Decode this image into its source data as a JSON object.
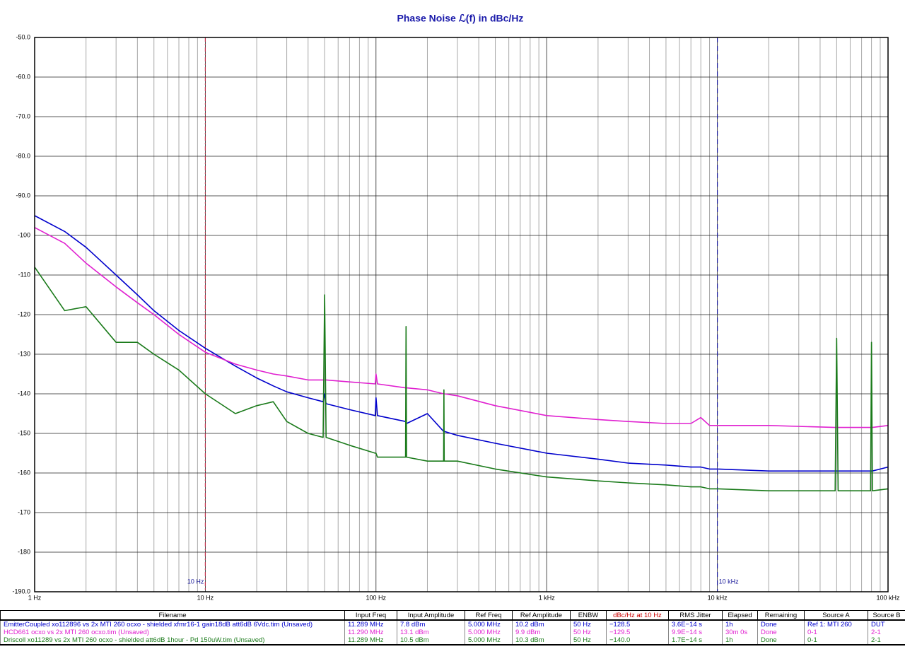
{
  "chart_data": {
    "type": "line",
    "title": "Phase Noise ℒ(f) in dBc/Hz",
    "log_x": true,
    "grid": true,
    "minor_grid": true,
    "xlim": [
      1,
      100000
    ],
    "ylim": [
      -190,
      -50
    ],
    "xticks": [
      {
        "value": 1,
        "label": "1 Hz"
      },
      {
        "value": 10,
        "label": "10 Hz"
      },
      {
        "value": 100,
        "label": "100 Hz"
      },
      {
        "value": 1000,
        "label": "1 kHz"
      },
      {
        "value": 10000,
        "label": "10 kHz"
      },
      {
        "value": 100000,
        "label": "100 kHz"
      }
    ],
    "yticks": [
      {
        "value": -50,
        "label": "-50.0"
      },
      {
        "value": -60,
        "label": "-60.0"
      },
      {
        "value": -70,
        "label": "-70.0"
      },
      {
        "value": -80,
        "label": "-80.0"
      },
      {
        "value": -90,
        "label": "-90.0"
      },
      -100,
      -110,
      -120,
      -130,
      -140,
      -150,
      -160,
      -170,
      -180,
      {
        "value": -190,
        "label": "-190.0"
      }
    ],
    "markers": [
      {
        "x": 10,
        "label": "10 Hz",
        "color": "#c0304a"
      },
      {
        "x": 10000,
        "label": "10 kHz",
        "color": "#1a1a9a"
      }
    ],
    "x": [
      1,
      1.5,
      2,
      3,
      4,
      5,
      7,
      10,
      15,
      20,
      25,
      30,
      40,
      49,
      50,
      51,
      70,
      99,
      100,
      102,
      149,
      150,
      151,
      200,
      249,
      250,
      251,
      300,
      500,
      1000,
      2000,
      3000,
      5000,
      7000,
      8000,
      9000,
      10000,
      20000,
      49000,
      50000,
      51000,
      79000,
      80000,
      81000,
      100000
    ],
    "series": [
      {
        "name": "EmitterCoupled xo112896 vs 2x MTI 260 ocxo - shielded xfmr16-1 gain18dB att6dB 6Vdc.tim (Unsaved)",
        "color": "#0000cc",
        "values": [
          -95,
          -99,
          -103,
          -110,
          -115,
          -119,
          -124,
          -128.5,
          -133,
          -136,
          -138,
          -139.5,
          -141,
          -142,
          -140,
          -142.5,
          -144,
          -145.5,
          -141,
          -145.5,
          -147,
          -147,
          -147.5,
          -145,
          -149.5,
          -149.5,
          -149.5,
          -150.5,
          -152.5,
          -155,
          -156.5,
          -157.5,
          -158,
          -158.5,
          -158.5,
          -159,
          -159,
          -159.5,
          -159.5,
          -159.5,
          -159.5,
          -159.5,
          -159.5,
          -159.5,
          -158.5
        ]
      },
      {
        "name": "HCD661 ocxo vs 2x MTI 260 ocxo.tim (Unsaved)",
        "color": "#e020d0",
        "values": [
          -98,
          -102,
          -107,
          -113,
          -117,
          -120,
          -125,
          -129.5,
          -132.5,
          -134,
          -135,
          -135.5,
          -136.5,
          -136.5,
          -136.5,
          -136.5,
          -137,
          -137.5,
          -135,
          -137.5,
          -138.5,
          -138.5,
          -138.5,
          -139,
          -140,
          -140,
          -140,
          -140.5,
          -143,
          -145.5,
          -146.5,
          -147,
          -147.5,
          -147.5,
          -146,
          -148,
          -148,
          -148,
          -148.5,
          -148.5,
          -148.5,
          -148.5,
          -148.5,
          -148.5,
          -148
        ]
      },
      {
        "name": "Driscoll xo11289 vs 2x MTI 260 ocxo - shielded att6dB 1hour - Pd 150uW.tim (Unsaved)",
        "color": "#1a7a1a",
        "values": [
          -108,
          -119,
          -118,
          -127,
          -127,
          -130,
          -134,
          -140,
          -145,
          -143,
          -142,
          -147,
          -150,
          -151,
          -115,
          -151,
          -153,
          -155,
          -155,
          -156,
          -156,
          -123,
          -156,
          -157,
          -157,
          -139,
          -157,
          -157,
          -159,
          -161,
          -162,
          -162.5,
          -163,
          -163.5,
          -163.5,
          -164,
          -164,
          -164.5,
          -164.5,
          -126,
          -164.5,
          -164.5,
          -127,
          -164.5,
          -164
        ]
      }
    ]
  },
  "table": {
    "columns": [
      "Filename",
      "Input Freq",
      "Input Amplitude",
      "Ref Freq",
      "Ref Amplitude",
      "ENBW",
      "dBc/Hz at 10 Hz",
      "RMS Jitter",
      "Elapsed",
      "Remaining",
      "Source A",
      "Source B"
    ],
    "rows": [
      [
        "11.289 MHz",
        "7.8 dBm",
        "5.000 MHz",
        "10.2 dBm",
        "50 Hz",
        "−128.5",
        "3.6E−14 s",
        "1h",
        "Done",
        "Ref 1: MTI 260",
        "DUT"
      ],
      [
        "11.290 MHz",
        "13.1 dBm",
        "5.000 MHz",
        "9.9 dBm",
        "50 Hz",
        "−129.5",
        "9.9E−14 s",
        "30m 0s",
        "Done",
        "0-1",
        "2-1"
      ],
      [
        "11.289 MHz",
        "10.5 dBm",
        "5.000 MHz",
        "10.3 dBm",
        "50 Hz",
        "−140.0",
        "1.7E−14 s",
        "1h",
        "Done",
        "0-1",
        "2-1"
      ]
    ]
  }
}
